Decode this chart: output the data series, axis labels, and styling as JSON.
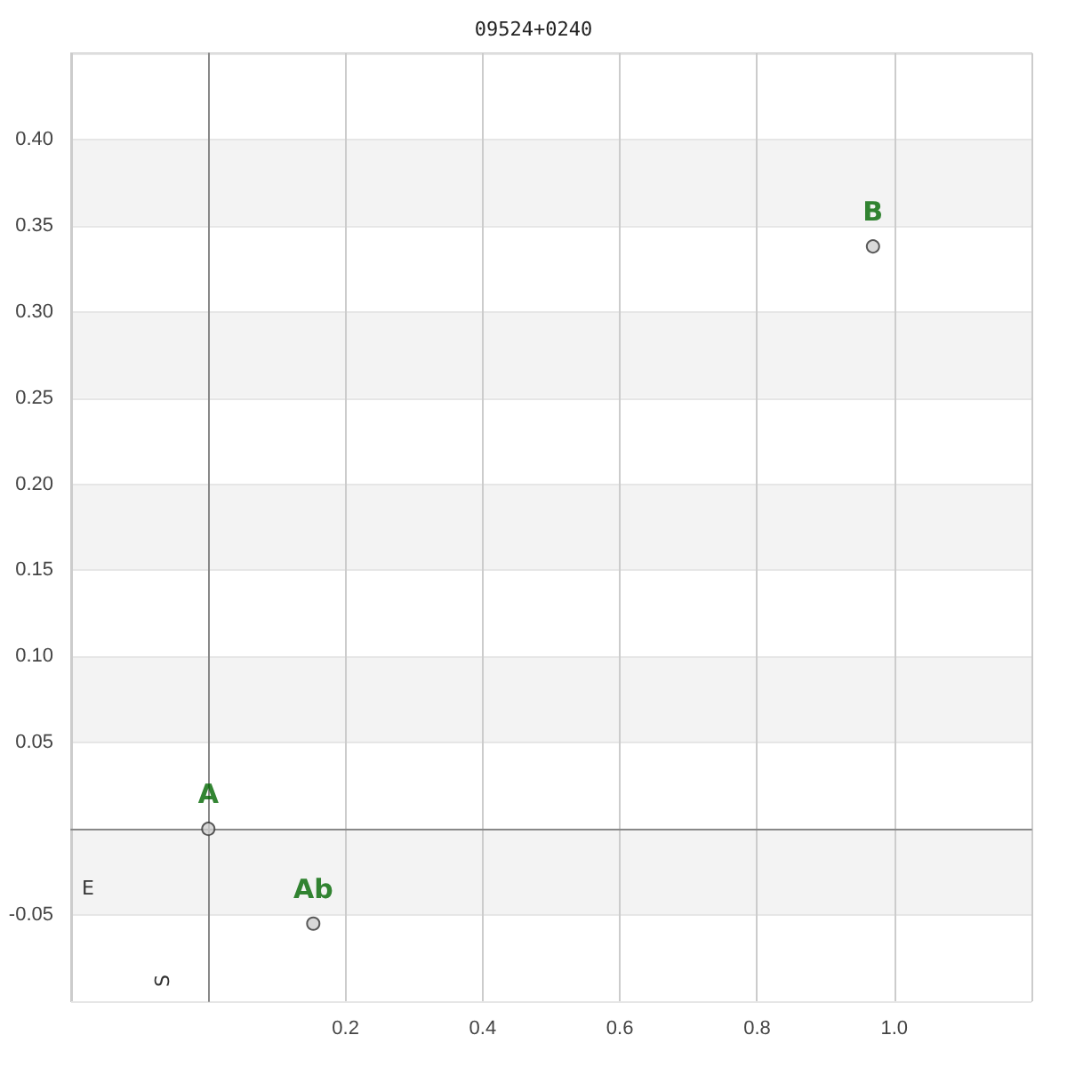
{
  "chart_data": {
    "type": "scatter",
    "title": "09524+0240",
    "xlabel": "E",
    "ylabel": "S",
    "x": [
      0,
      0.969,
      0.153
    ],
    "series": [
      {
        "color": "#d0d0d0",
        "values": [
          0,
          0.338,
          -0.055
        ]
      }
    ],
    "xlim": [
      -0.2,
      1.2
    ],
    "ylim": [
      -0.1,
      0.45
    ],
    "xticks": [
      {
        "value": 0,
        "label": null
      },
      0.2,
      0.4,
      0.6,
      0.8,
      {
        "value": 1,
        "label": "1.0"
      }
    ],
    "yticks": [
      {
        "value": -0.05,
        "label": "-0.05"
      },
      {
        "value": 0,
        "label": null
      },
      0.05,
      {
        "value": 0.1,
        "label": "0.10"
      },
      0.15,
      {
        "value": 0.2,
        "label": "0.20"
      },
      0.25,
      {
        "value": 0.3,
        "label": "0.30"
      },
      0.35,
      {
        "value": 0.4,
        "label": "0.40"
      }
    ],
    "annotations": [
      {
        "text": "A",
        "x": 0,
        "y": 0
      },
      {
        "text": "B",
        "x": 0.969,
        "y": 0.338
      },
      {
        "text": "Ab",
        "x": 0.153,
        "y": -0.055
      }
    ],
    "grid": true,
    "marker": "circle"
  }
}
